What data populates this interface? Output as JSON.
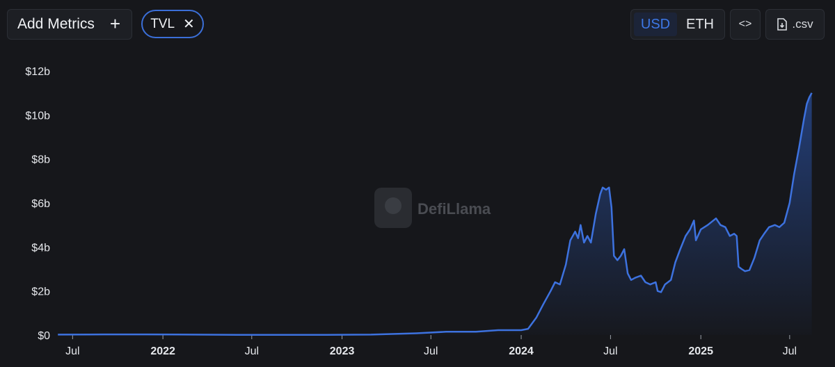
{
  "toolbar": {
    "add_metrics_label": "Add Metrics",
    "add_icon": "plus-icon",
    "metric_chip_label": "TVL",
    "chip_close_icon": "close-icon",
    "currency_options": [
      "USD",
      "ETH"
    ],
    "selected_currency": "USD",
    "embed_icon": "code-brackets-icon",
    "csv_label": ".csv",
    "csv_icon": "file-download-icon"
  },
  "watermark": {
    "text": "DefiLlama"
  },
  "colors": {
    "background": "#16171b",
    "line": "#3d72df",
    "accent": "#3d78e6"
  },
  "chart_data": {
    "type": "area",
    "title": "",
    "xlabel": "",
    "ylabel": "",
    "ylim": [
      0,
      12
    ],
    "y_unit": "billion USD",
    "y_ticks": [
      "$0",
      "$2b",
      "$4b",
      "$6b",
      "$8b",
      "$10b",
      "$12b"
    ],
    "x_ticks": [
      {
        "label": "Jul",
        "date": "2021-07-01",
        "bold": false
      },
      {
        "label": "2022",
        "date": "2022-01-01",
        "bold": true
      },
      {
        "label": "Jul",
        "date": "2022-07-01",
        "bold": false
      },
      {
        "label": "2023",
        "date": "2023-01-01",
        "bold": true
      },
      {
        "label": "Jul",
        "date": "2023-07-01",
        "bold": false
      },
      {
        "label": "2024",
        "date": "2024-01-01",
        "bold": true
      },
      {
        "label": "Jul",
        "date": "2024-07-01",
        "bold": false
      },
      {
        "label": "2025",
        "date": "2025-01-01",
        "bold": true
      },
      {
        "label": "Jul",
        "date": "2025-07-01",
        "bold": false
      }
    ],
    "grid": false,
    "series": [
      {
        "values": [
          [
            "2021-06-01",
            0.02
          ],
          [
            "2021-09-01",
            0.03
          ],
          [
            "2021-12-01",
            0.03
          ],
          [
            "2022-03-01",
            0.02
          ],
          [
            "2022-06-01",
            0.01
          ],
          [
            "2022-09-01",
            0.01
          ],
          [
            "2022-12-01",
            0.01
          ],
          [
            "2023-03-01",
            0.02
          ],
          [
            "2023-06-01",
            0.08
          ],
          [
            "2023-08-01",
            0.15
          ],
          [
            "2023-10-01",
            0.15
          ],
          [
            "2023-11-15",
            0.22
          ],
          [
            "2024-01-01",
            0.22
          ],
          [
            "2024-01-15",
            0.28
          ],
          [
            "2024-02-01",
            0.8
          ],
          [
            "2024-02-15",
            1.4
          ],
          [
            "2024-03-01",
            2.0
          ],
          [
            "2024-03-10",
            2.4
          ],
          [
            "2024-03-20",
            2.3
          ],
          [
            "2024-04-01",
            3.2
          ],
          [
            "2024-04-10",
            4.3
          ],
          [
            "2024-04-20",
            4.7
          ],
          [
            "2024-04-26",
            4.4
          ],
          [
            "2024-05-01",
            5.0
          ],
          [
            "2024-05-08",
            4.2
          ],
          [
            "2024-05-15",
            4.5
          ],
          [
            "2024-05-22",
            4.2
          ],
          [
            "2024-06-01",
            5.5
          ],
          [
            "2024-06-10",
            6.4
          ],
          [
            "2024-06-15",
            6.7
          ],
          [
            "2024-06-22",
            6.6
          ],
          [
            "2024-06-28",
            6.7
          ],
          [
            "2024-07-03",
            5.8
          ],
          [
            "2024-07-08",
            3.6
          ],
          [
            "2024-07-15",
            3.4
          ],
          [
            "2024-07-22",
            3.6
          ],
          [
            "2024-07-29",
            3.9
          ],
          [
            "2024-08-05",
            2.8
          ],
          [
            "2024-08-12",
            2.5
          ],
          [
            "2024-08-20",
            2.6
          ],
          [
            "2024-09-01",
            2.7
          ],
          [
            "2024-09-10",
            2.4
          ],
          [
            "2024-09-20",
            2.3
          ],
          [
            "2024-10-01",
            2.4
          ],
          [
            "2024-10-05",
            2.0
          ],
          [
            "2024-10-12",
            1.95
          ],
          [
            "2024-10-20",
            2.3
          ],
          [
            "2024-11-01",
            2.5
          ],
          [
            "2024-11-10",
            3.3
          ],
          [
            "2024-11-20",
            3.9
          ],
          [
            "2024-12-01",
            4.5
          ],
          [
            "2024-12-10",
            4.8
          ],
          [
            "2024-12-18",
            5.2
          ],
          [
            "2024-12-22",
            4.3
          ],
          [
            "2025-01-01",
            4.8
          ],
          [
            "2025-01-15",
            5.0
          ],
          [
            "2025-02-01",
            5.3
          ],
          [
            "2025-02-10",
            5.0
          ],
          [
            "2025-02-20",
            4.9
          ],
          [
            "2025-03-01",
            4.5
          ],
          [
            "2025-03-10",
            4.6
          ],
          [
            "2025-03-15",
            4.5
          ],
          [
            "2025-03-19",
            3.1
          ],
          [
            "2025-03-25",
            3.0
          ],
          [
            "2025-04-01",
            2.9
          ],
          [
            "2025-04-10",
            2.95
          ],
          [
            "2025-04-20",
            3.5
          ],
          [
            "2025-05-01",
            4.3
          ],
          [
            "2025-05-10",
            4.6
          ],
          [
            "2025-05-20",
            4.9
          ],
          [
            "2025-06-01",
            5.0
          ],
          [
            "2025-06-10",
            4.9
          ],
          [
            "2025-06-20",
            5.1
          ],
          [
            "2025-07-01",
            6.0
          ],
          [
            "2025-07-10",
            7.3
          ],
          [
            "2025-07-20",
            8.5
          ],
          [
            "2025-07-30",
            9.8
          ],
          [
            "2025-08-05",
            10.5
          ],
          [
            "2025-08-10",
            10.8
          ],
          [
            "2025-08-15",
            11.0
          ]
        ]
      }
    ]
  }
}
